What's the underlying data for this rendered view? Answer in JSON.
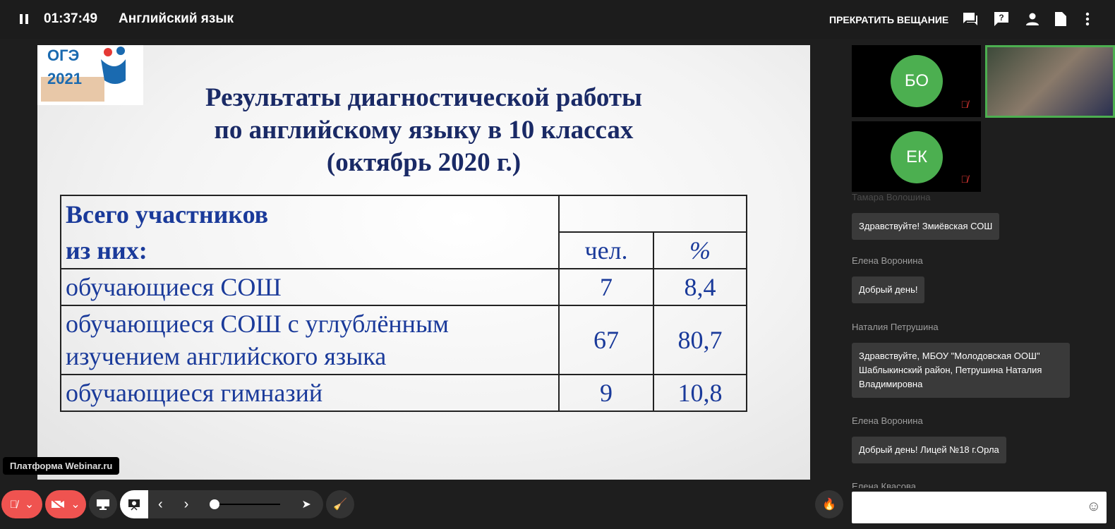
{
  "header": {
    "time": "01:37:49",
    "title": "Английский язык",
    "stop_label": "ПРЕКРАТИТЬ ВЕЩАНИЕ",
    "icons": [
      "chat-icon",
      "question-icon",
      "person-icon",
      "document-icon",
      "more-vert-icon"
    ]
  },
  "slide": {
    "logo_text": "ОГЭ 2021",
    "title_lines": [
      "Результаты диагностической работы",
      "по английскому языку в 10 классах",
      "(октябрь 2020 г.)"
    ],
    "table": {
      "header1": "Всего участников",
      "header2": "из них:",
      "col_count": "чел.",
      "col_pct": "%",
      "rows": [
        {
          "label": "обучающиеся СОШ",
          "count": "7",
          "pct": "8,4"
        },
        {
          "label": "обучающиеся СОШ с углублённым изучением английского языка",
          "count": "67",
          "pct": "80,7"
        },
        {
          "label": "обучающиеся гимназий",
          "count": "9",
          "pct": "10,8"
        }
      ]
    }
  },
  "participants": [
    {
      "initials": "БО"
    },
    {
      "initials": "ЕК"
    }
  ],
  "chat": [
    {
      "name": "Тамара Волошина",
      "text": "Здравствуйте! Змиёвская СОШ"
    },
    {
      "name": "Елена Воронина",
      "text": "Добрый день!"
    },
    {
      "name": "Наталия Петрушина",
      "text": "Здравствуйте, МБОУ \"Молодовская ООШ\" Шаблыкинский район, Петрушина Наталия Владимировна"
    },
    {
      "name": "Елена Воронина",
      "text": "Добрый день! Лицей №18 г.Орла"
    },
    {
      "name": "Елена Квасова",
      "text": ""
    }
  ],
  "tooltip": "Платформа Webinar.ru",
  "colors": {
    "accent": "#4caf50",
    "danger": "#ef5350"
  }
}
